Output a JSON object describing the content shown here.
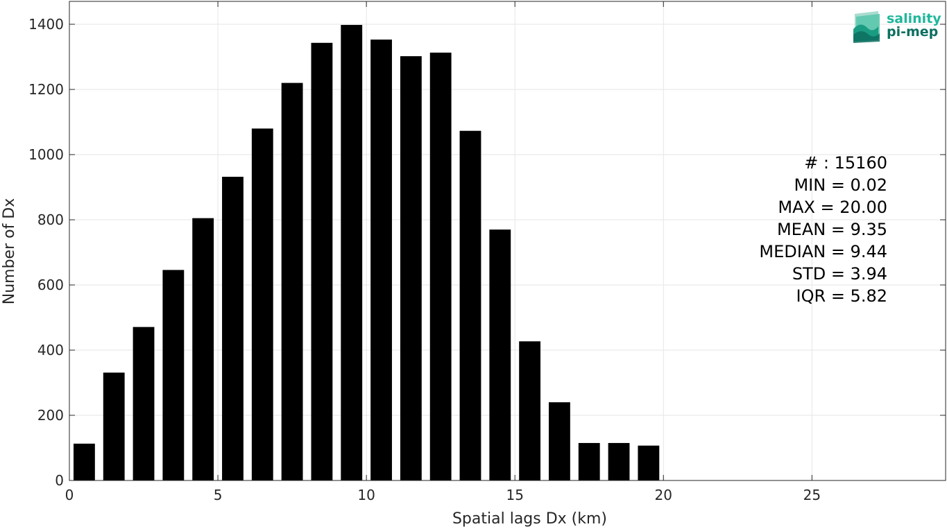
{
  "chart_data": {
    "type": "bar",
    "title": "",
    "xlabel": "Spatial lags Dx (km)",
    "ylabel": "Number of Dx",
    "xlim": [
      0,
      29.5
    ],
    "ylim": [
      0,
      1400
    ],
    "x": [
      0.5,
      1.5,
      2.5,
      3.5,
      4.5,
      5.5,
      6.5,
      7.5,
      8.5,
      9.5,
      10.5,
      11.5,
      12.5,
      13.5,
      14.5,
      15.5,
      16.5,
      17.5,
      18.5,
      19.5
    ],
    "values": [
      113,
      331,
      471,
      646,
      805,
      932,
      1080,
      1220,
      1343,
      1398,
      1353,
      1302,
      1313,
      1073,
      770,
      427,
      240,
      115,
      115,
      107
    ],
    "xticks": [
      0,
      5,
      10,
      15,
      20,
      25
    ],
    "yticks": [
      0,
      200,
      400,
      600,
      800,
      1000,
      1200,
      1400
    ],
    "grid": true,
    "bar_color": "#000000",
    "annotations": [
      "# : 15160",
      "MIN = 0.02",
      "MAX =  20.00",
      "MEAN = 9.35",
      "MEDIAN = 9.44",
      "STD = 3.94",
      "IQR = 5.82"
    ]
  },
  "logo": {
    "line1": "salinity",
    "line2": "pi-mep",
    "color_light": "#1fb79b",
    "color_dark": "#0d6f60"
  }
}
